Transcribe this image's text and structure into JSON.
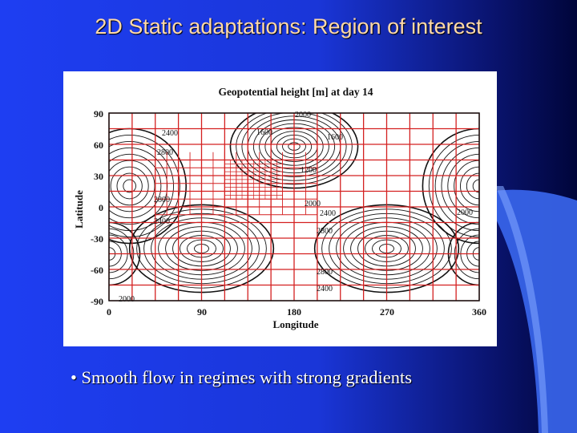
{
  "slide": {
    "title": "2D Static adaptations: Region of interest",
    "bullet_marker": "•",
    "bullet_text": "Smooth flow in regimes with strong gradients"
  },
  "figure": {
    "title": "Geopotential height [m] at day 14",
    "xlabel": "Longitude",
    "ylabel": "Latitude",
    "x_ticks": [
      "0",
      "90",
      "180",
      "270",
      "360"
    ],
    "y_ticks": [
      "90",
      "60",
      "30",
      "0",
      "-30",
      "-60",
      "-90"
    ],
    "contour_labels": [
      "2000",
      "2400",
      "2800",
      "1600",
      "1600",
      "1200",
      "2800",
      "2400",
      "2000",
      "2400",
      "2800",
      "2000",
      "2800",
      "2400",
      "2000"
    ],
    "colors": {
      "grid": "#d42020",
      "contour": "#111111",
      "background": "#ffffff"
    }
  }
}
